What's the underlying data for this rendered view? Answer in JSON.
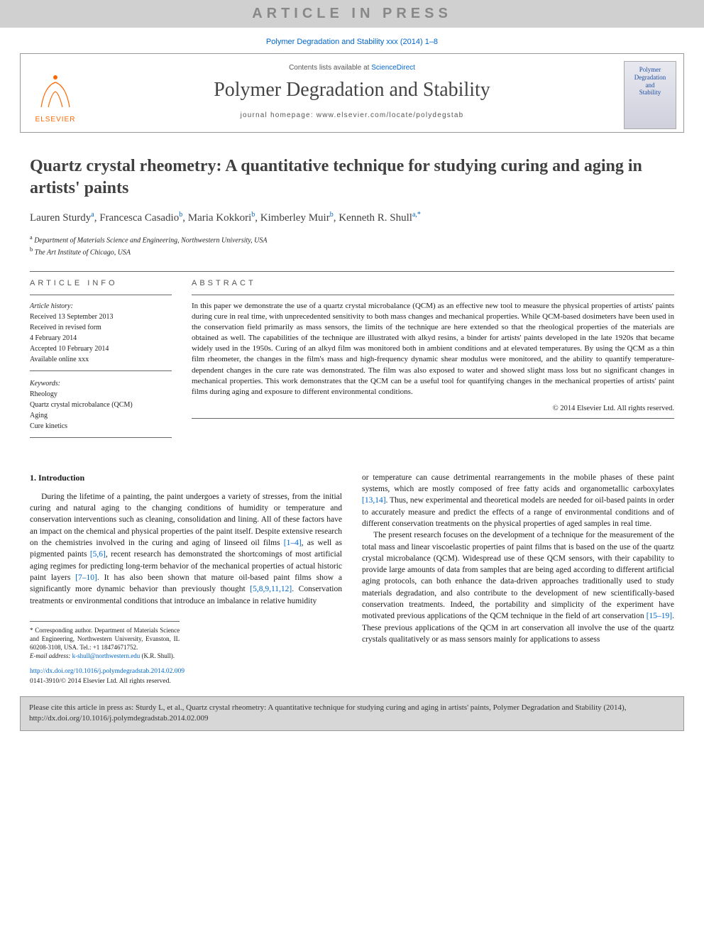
{
  "banner": {
    "text": "ARTICLE IN PRESS"
  },
  "citeline": "Polymer Degradation and Stability xxx (2014) 1–8",
  "header": {
    "contents_pre": "Contents lists available at ",
    "contents_link": "ScienceDirect",
    "journal": "Polymer Degradation and Stability",
    "homepage_pre": "journal homepage: ",
    "homepage_url": "www.elsevier.com/locate/polydegstab",
    "publisher": "ELSEVIER",
    "cover_lines": [
      "Polymer",
      "Degradation",
      "and",
      "Stability"
    ]
  },
  "title": "Quartz crystal rheometry: A quantitative technique for studying curing and aging in artists' paints",
  "authors_html": "Lauren Sturdy<sup>a</sup>, Francesca Casadio<sup>b</sup>, Maria Kokkori<sup>b</sup>, Kimberley Muir<sup>b</sup>, Kenneth R. Shull<sup>a,*</sup>",
  "affiliations": [
    {
      "sup": "a",
      "text": "Department of Materials Science and Engineering, Northwestern University, USA"
    },
    {
      "sup": "b",
      "text": "The Art Institute of Chicago, USA"
    }
  ],
  "info": {
    "head": "ARTICLE INFO",
    "history_label": "Article history:",
    "history": [
      "Received 13 September 2013",
      "Received in revised form",
      "4 February 2014",
      "Accepted 10 February 2014",
      "Available online xxx"
    ],
    "keywords_label": "Keywords:",
    "keywords": [
      "Rheology",
      "Quartz crystal microbalance (QCM)",
      "Aging",
      "Cure kinetics"
    ]
  },
  "abstract": {
    "head": "ABSTRACT",
    "body": "In this paper we demonstrate the use of a quartz crystal microbalance (QCM) as an effective new tool to measure the physical properties of artists' paints during cure in real time, with unprecedented sensitivity to both mass changes and mechanical properties. While QCM-based dosimeters have been used in the conservation field primarily as mass sensors, the limits of the technique are here extended so that the rheological properties of the materials are obtained as well. The capabilities of the technique are illustrated with alkyd resins, a binder for artists' paints developed in the late 1920s that became widely used in the 1950s. Curing of an alkyd film was monitored both in ambient conditions and at elevated temperatures. By using the QCM as a thin film rheometer, the changes in the film's mass and high-frequency dynamic shear modulus were monitored, and the ability to quantify temperature-dependent changes in the cure rate was demonstrated. The film was also exposed to water and showed slight mass loss but no significant changes in mechanical properties. This work demonstrates that the QCM can be a useful tool for quantifying changes in the mechanical properties of artists' paint films during aging and exposure to different environmental conditions.",
    "copyright": "© 2014 Elsevier Ltd. All rights reserved."
  },
  "section1": {
    "head": "1. Introduction",
    "col1_p1_a": "During the lifetime of a painting, the paint undergoes a variety of stresses, from the initial curing and natural aging to the changing conditions of humidity or temperature and conservation interventions such as cleaning, consolidation and lining. All of these factors have an impact on the chemical and physical properties of the paint itself. Despite extensive research on the chemistries involved in the curing and aging of linseed oil films ",
    "ref14": "[1–4]",
    "col1_p1_b": ", as well as pigmented paints ",
    "ref56": "[5,6]",
    "col1_p1_c": ", recent research has demonstrated the shortcomings of most artificial aging regimes for predicting long-term behavior of the mechanical properties of actual historic paint layers ",
    "ref710": "[7–10]",
    "col1_p1_d": ". It has also been shown that mature oil-based paint films show a significantly more dynamic behavior than previously thought ",
    "ref58": "[5,8,9,11,12]",
    "col1_p1_e": ". Conservation treatments or environmental conditions that introduce an imbalance in relative humidity",
    "col2_p1_a": "or temperature can cause detrimental rearrangements in the mobile phases of these paint systems, which are mostly composed of free fatty acids and organometallic carboxylates ",
    "ref1314": "[13,14]",
    "col2_p1_b": ". Thus, new experimental and theoretical models are needed for oil-based paints in order to accurately measure and predict the effects of a range of environmental conditions and of different conservation treatments on the physical properties of aged samples in real time.",
    "col2_p2_a": "The present research focuses on the development of a technique for the measurement of the total mass and linear viscoelastic properties of paint films that is based on the use of the quartz crystal microbalance (QCM). Widespread use of these QCM sensors, with their capability to provide large amounts of data from samples that are being aged according to different artificial aging protocols, can both enhance the data-driven approaches traditionally used to study materials degradation, and also contribute to the development of new scientifically-based conservation treatments. Indeed, the portability and simplicity of the experiment have motivated previous applications of the QCM technique in the field of art conservation ",
    "ref1519": "[15–19]",
    "col2_p2_b": ". These previous applications of the QCM in art conservation all involve the use of the quartz crystals qualitatively or as mass sensors mainly for applications to assess"
  },
  "footnote": {
    "corr": "* Corresponding author. Department of Materials Science and Engineering, Northwestern University, Evanston, IL 60208-3108, USA. Tel.: +1 18474671752.",
    "email_lbl": "E-mail address:",
    "email": "k-shull@northwestern.edu",
    "email_who": "(K.R. Shull)."
  },
  "doi": {
    "url": "http://dx.doi.org/10.1016/j.polymdegradstab.2014.02.009",
    "issn": "0141-3910/© 2014 Elsevier Ltd. All rights reserved."
  },
  "citebox": "Please cite this article in press as: Sturdy L, et al., Quartz crystal rheometry: A quantitative technique for studying curing and aging in artists' paints, Polymer Degradation and Stability (2014), http://dx.doi.org/10.1016/j.polymdegradstab.2014.02.009",
  "colors": {
    "link": "#0066cc",
    "orange": "#ff6600",
    "banner_bg": "#d0d0d0",
    "banner_fg": "#888888"
  }
}
